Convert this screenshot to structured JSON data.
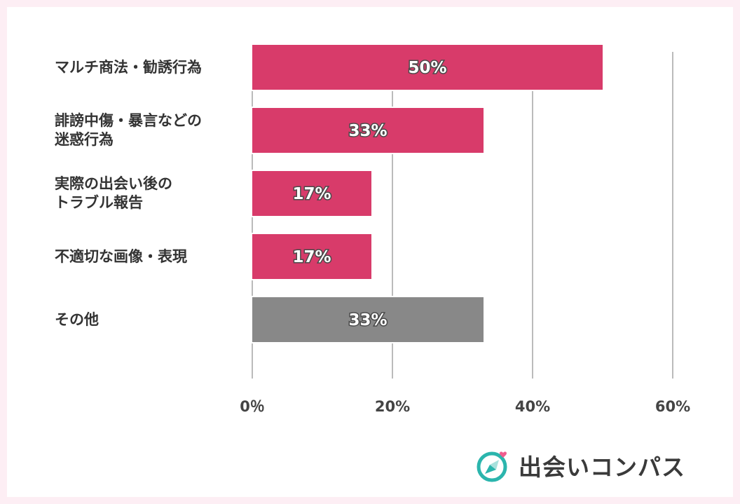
{
  "chart_data": {
    "type": "bar",
    "orientation": "horizontal",
    "categories": [
      "マルチ商法・勧誘行為",
      "誹謗中傷・暴言などの\n迷惑行為",
      "実際の出会い後の\nトラブル報告",
      "不適切な画像・表現",
      "その他"
    ],
    "values": [
      50,
      33,
      17,
      17,
      33
    ],
    "value_labels": [
      "50%",
      "33%",
      "17%",
      "17%",
      "33%"
    ],
    "bar_colors": [
      "#d83b6a",
      "#d83b6a",
      "#d83b6a",
      "#d83b6a",
      "#888888"
    ],
    "xlim": [
      0,
      60
    ],
    "x_ticks": [
      0,
      20,
      40,
      60
    ],
    "x_tick_labels": [
      "0％",
      "20%",
      "40%",
      "60%"
    ],
    "grid": true,
    "title": "",
    "xlabel": "",
    "ylabel": ""
  },
  "brand": {
    "name": "出会いコンパス",
    "logo_icon": "compass-icon",
    "accent_color": "#2bb5ad",
    "heart_color": "#ef5d8e"
  },
  "colors": {
    "page_background": "#fdeef4",
    "card_background": "#ffffff",
    "gridline": "#777777"
  }
}
